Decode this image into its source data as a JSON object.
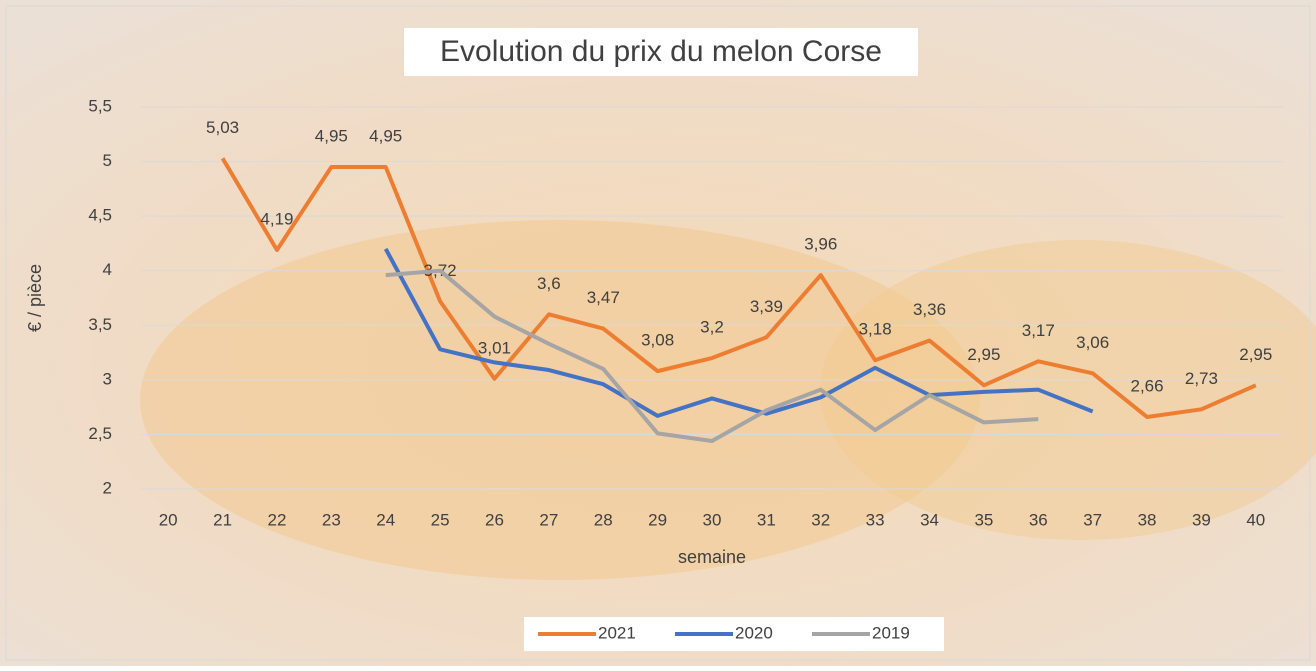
{
  "chart_data": {
    "type": "line",
    "title": "Evolution du prix du melon Corse",
    "x_label": "semaine",
    "y_label": "€ / pièce",
    "categories": [
      "20",
      "21",
      "22",
      "23",
      "24",
      "25",
      "26",
      "27",
      "28",
      "29",
      "30",
      "31",
      "32",
      "33",
      "34",
      "35",
      "36",
      "37",
      "38",
      "39",
      "40"
    ],
    "series": [
      {
        "name": "2021",
        "color": "#ed7d31",
        "values": [
          null,
          5.03,
          4.19,
          4.95,
          4.95,
          3.72,
          3.01,
          3.6,
          3.47,
          3.08,
          3.2,
          3.39,
          3.96,
          3.18,
          3.36,
          2.95,
          3.17,
          3.06,
          2.66,
          2.73,
          2.95
        ],
        "value_labels": [
          null,
          "5,03",
          "4,19",
          "4,95",
          "4,95",
          "3,72",
          "3,01",
          "3,6",
          "3,47",
          "3,08",
          "3,2",
          "3,39",
          "3,96",
          "3,18",
          "3,36",
          "2,95",
          "3,17",
          "3,06",
          "2,66",
          "2,73",
          "2,95"
        ]
      },
      {
        "name": "2020",
        "color": "#4472c4",
        "values": [
          null,
          null,
          null,
          null,
          4.2,
          3.28,
          3.16,
          3.09,
          2.96,
          2.67,
          2.83,
          2.69,
          2.84,
          3.11,
          2.86,
          2.89,
          2.91,
          2.71,
          null,
          null,
          null
        ]
      },
      {
        "name": "2019",
        "color": "#a5a5a5",
        "values": [
          null,
          null,
          null,
          null,
          3.96,
          4.0,
          3.58,
          3.33,
          3.1,
          2.51,
          2.44,
          2.72,
          2.91,
          2.54,
          2.86,
          2.61,
          2.64,
          null,
          null,
          null,
          null
        ]
      }
    ],
    "ylim": [
      2,
      5.5
    ],
    "yticks": [
      2,
      {
        "value": 2.5,
        "label": "2,5"
      },
      3,
      {
        "value": 3.5,
        "label": "3,5"
      },
      4,
      {
        "value": 4.5,
        "label": "4,5"
      },
      5,
      {
        "value": 5.5,
        "label": "5,5"
      }
    ],
    "grid": true,
    "legend": "bottom"
  }
}
